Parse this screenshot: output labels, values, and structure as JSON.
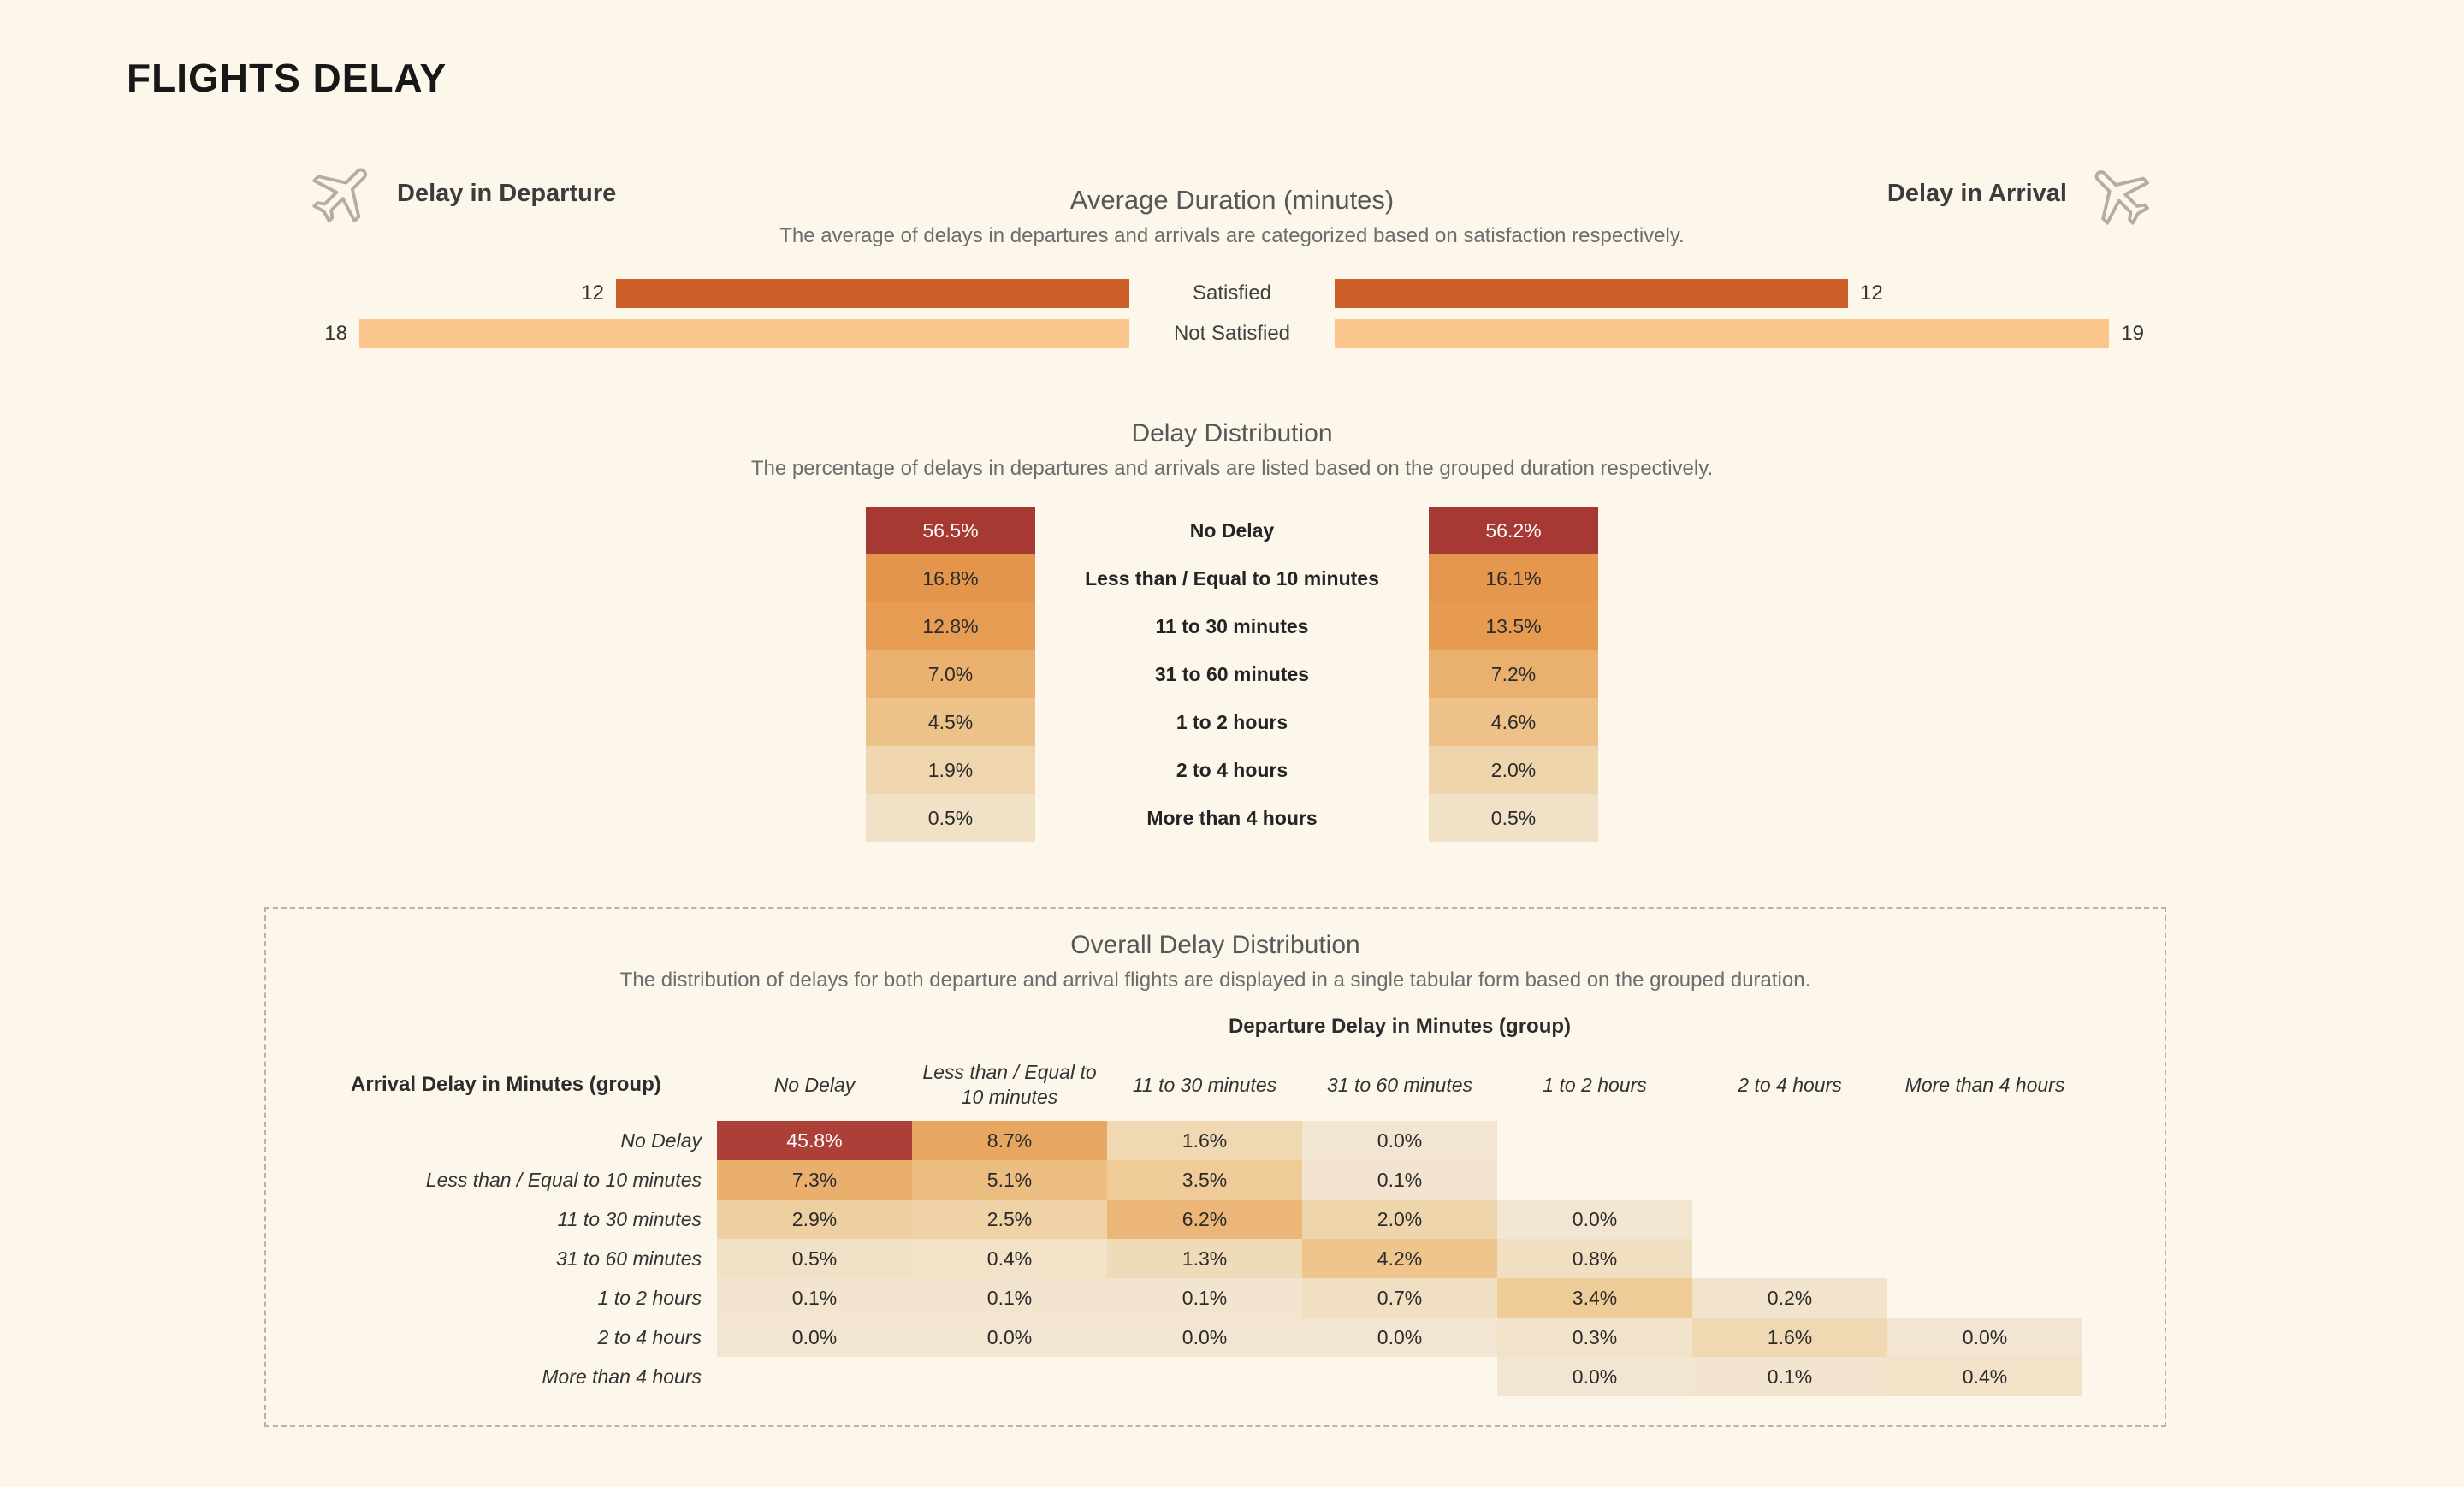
{
  "page": {
    "title": "FLIGHTS DELAY"
  },
  "colors": {
    "background": "#FCF6EB",
    "satisfied_bar": "#CC5F27",
    "not_satisfied_bar": "#FAC68C",
    "heat_text_dark": "#2B2B2B",
    "heat_text_light": "#FFFFFF",
    "heat_stops": [
      [
        0,
        "#F2E5D1"
      ],
      [
        0.5,
        "#F1E1C6"
      ],
      [
        2,
        "#EFD5AC"
      ],
      [
        3.5,
        "#EECB97"
      ],
      [
        5,
        "#ECBE82"
      ],
      [
        7,
        "#EAB170"
      ],
      [
        9,
        "#E8A55E"
      ],
      [
        13,
        "#E69C52"
      ],
      [
        17,
        "#E3954B"
      ],
      [
        30,
        "#C66A41"
      ],
      [
        45,
        "#AC3F38"
      ],
      [
        60,
        "#A53732"
      ]
    ]
  },
  "chart_data": [
    {
      "type": "bar",
      "title": "Average Duration (minutes)",
      "subtitle": "The average of delays in departures and arrivals are categorized based on satisfaction respectively.",
      "left_axis_label": "Delay in Departure",
      "right_axis_label": "Delay in Arrival",
      "categories": [
        "Satisfied",
        "Not Satisfied"
      ],
      "series": [
        {
          "name": "Delay in Departure",
          "values": [
            12,
            18
          ]
        },
        {
          "name": "Delay in Arrival",
          "values": [
            12,
            19
          ]
        }
      ],
      "layout": {
        "orientation": "diverging-horizontal",
        "value_labels": "outside-ends"
      }
    },
    {
      "type": "heatmap",
      "title": "Delay Distribution",
      "subtitle": "The percentage of delays in departures and arrivals are listed based on the grouped duration respectively.",
      "categories": [
        "No Delay",
        "Less than / Equal to 10 minutes",
        "11 to 30 minutes",
        "31 to 60 minutes",
        "1 to 2 hours",
        "2 to 4 hours",
        "More than 4 hours"
      ],
      "series": [
        {
          "name": "Departure",
          "values": [
            56.5,
            16.8,
            12.8,
            7.0,
            4.5,
            1.9,
            0.5
          ]
        },
        {
          "name": "Arrival",
          "values": [
            56.2,
            16.1,
            13.5,
            7.2,
            4.6,
            2.0,
            0.5
          ]
        }
      ],
      "unit": "%"
    },
    {
      "type": "heatmap",
      "title": "Overall Delay Distribution",
      "subtitle": "The distribution of delays for both departure and arrival flights are displayed in a single tabular form based on the grouped duration.",
      "col_axis_title": "Departure Delay in Minutes (group)",
      "row_axis_title": "Arrival Delay in Minutes (group)",
      "columns": [
        "No Delay",
        "Less than / Equal to 10 minutes",
        "11 to 30 minutes",
        "31 to 60 minutes",
        "1 to 2 hours",
        "2 to 4 hours",
        "More than 4 hours"
      ],
      "rows": [
        "No Delay",
        "Less than / Equal to 10 minutes",
        "11 to 30 minutes",
        "31 to 60 minutes",
        "1 to 2 hours",
        "2 to 4 hours",
        "More than 4 hours"
      ],
      "values": [
        [
          45.8,
          8.7,
          1.6,
          0.0,
          null,
          null,
          null
        ],
        [
          7.3,
          5.1,
          3.5,
          0.1,
          null,
          null,
          null
        ],
        [
          2.9,
          2.5,
          6.2,
          2.0,
          0.0,
          null,
          null
        ],
        [
          0.5,
          0.4,
          1.3,
          4.2,
          0.8,
          null,
          null
        ],
        [
          0.1,
          0.1,
          0.1,
          0.7,
          3.4,
          0.2,
          null
        ],
        [
          0.0,
          0.0,
          0.0,
          0.0,
          0.3,
          1.6,
          0.0
        ],
        [
          null,
          null,
          null,
          null,
          0.0,
          0.1,
          0.4
        ]
      ],
      "unit": "%"
    }
  ]
}
